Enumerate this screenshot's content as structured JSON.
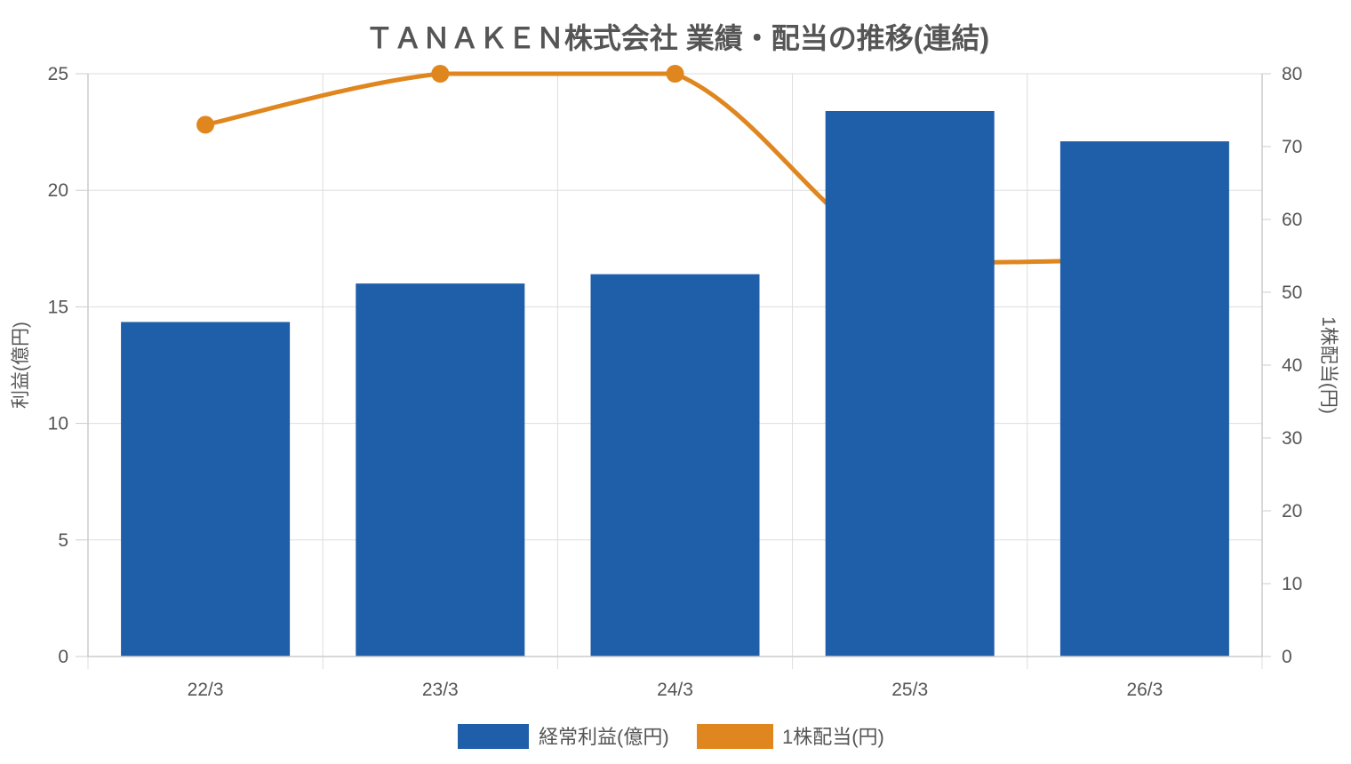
{
  "chart_data": {
    "type": "bar",
    "title": "ＴＡＮＡＫＥＮ株式会社 業績・配当の推移(連結)",
    "categories": [
      "22/3",
      "23/3",
      "24/3",
      "25/3",
      "26/3"
    ],
    "ylabel_left": "利益(億円)",
    "ylabel_right": "1株配当(円)",
    "ylim_left": [
      0,
      25
    ],
    "yticks_left": [
      0,
      5,
      10,
      15,
      20,
      25
    ],
    "ylim_right": [
      0,
      80
    ],
    "yticks_right": [
      0,
      10,
      20,
      30,
      40,
      50,
      60,
      70,
      80
    ],
    "grid": true,
    "legend_position": "bottom",
    "series": [
      {
        "name": "経常利益(億円)",
        "type": "bar",
        "axis": "left",
        "color": "#1f5ea8",
        "values": [
          14.35,
          16.0,
          16.4,
          23.4,
          22.1
        ]
      },
      {
        "name": "1株配当(円)",
        "type": "line",
        "axis": "right",
        "color": "#e0861e",
        "values": [
          73,
          80,
          80,
          54,
          54.5
        ],
        "markers": [
          true,
          true,
          true,
          false,
          false
        ]
      }
    ]
  }
}
